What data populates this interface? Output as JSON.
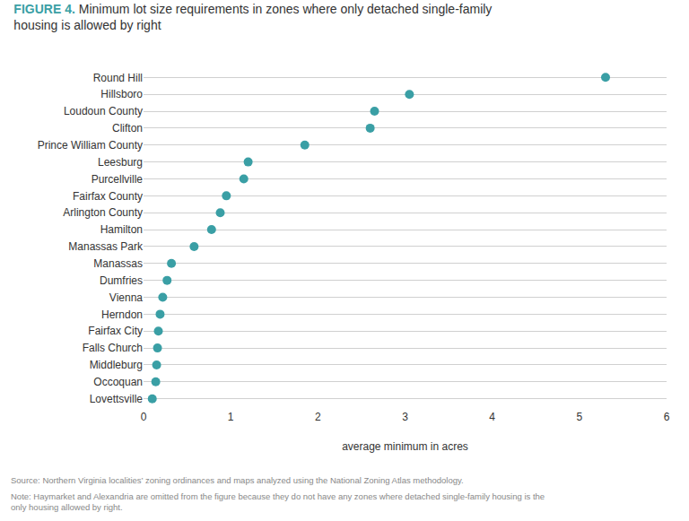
{
  "chart_data": {
    "type": "dot",
    "title": "FIGURE 4. Minimum lot size requirements in zones where only detached single-family\nhousing is allowed by right",
    "categories": [
      "Round Hill",
      "Hillsboro",
      "Loudoun County",
      "Clifton",
      "Prince William County",
      "Leesburg",
      "Purcellville",
      "Fairfax County",
      "Arlington County",
      "Hamilton",
      "Manassas Park",
      "Manassas",
      "Dumfries",
      "Vienna",
      "Herndon",
      "Fairfax City",
      "Falls Church",
      "Middleburg",
      "Occoquan",
      "Lovettsville"
    ],
    "values": [
      5.3,
      3.05,
      2.65,
      2.6,
      1.85,
      1.2,
      1.15,
      0.95,
      0.88,
      0.78,
      0.58,
      0.32,
      0.27,
      0.22,
      0.19,
      0.17,
      0.16,
      0.15,
      0.14,
      0.1
    ],
    "color": "#3a9fa5",
    "xlabel": "average minimum in acres",
    "xlim": [
      0,
      6
    ],
    "xticks": [
      0,
      1,
      2,
      3,
      4,
      5,
      6
    ],
    "grid": true,
    "annotations": [
      "Source: Northern Virginia localities’ zoning ordinances and maps analyzed using the National Zoning Atlas methodology.",
      "Note: Haymarket and Alexandria are omitted from the figure because they do not have any zones where detached single-family housing is the\nonly housing allowed by right."
    ]
  }
}
